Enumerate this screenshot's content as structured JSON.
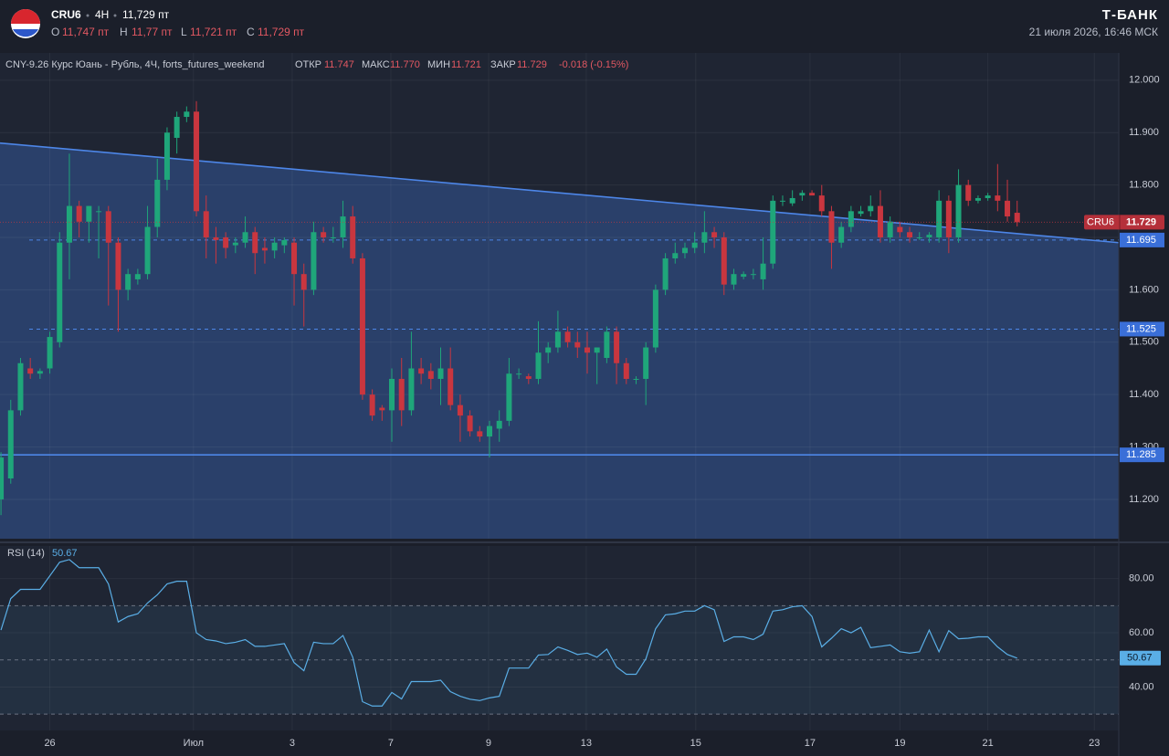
{
  "header": {
    "symbol": "CRU6",
    "interval": "4H",
    "last": "11,729 пт",
    "o_label": "O",
    "o_value": "11,747 пт",
    "h_label": "H",
    "h_value": "11,77 пт",
    "l_label": "L",
    "l_value": "11,721 пт",
    "c_label": "C",
    "c_value": "11,729 пт",
    "brand": "Т-БАНК",
    "datetime": "21 июля 2026, 16:46 МСК"
  },
  "chart_data": {
    "type": "candlestick",
    "legend_line": {
      "name": "CNY-9.26 Курс Юань - Рубль, 4Ч, forts_futures_weekend",
      "open_label": "ОТКР",
      "open": "11.747",
      "high_label": "МАКС",
      "high": "11.770",
      "low_label": "МИН",
      "low": "11.721",
      "close_label": "ЗАКР",
      "close": "11.729",
      "change": "-0.018 (-0.15%)"
    },
    "price_tag": "CRU6",
    "up_color": "#1fa67a",
    "down_color": "#c9363f",
    "candles": [
      [
        11.2,
        11.29,
        11.17,
        11.28
      ],
      [
        11.24,
        11.39,
        11.23,
        11.37
      ],
      [
        11.37,
        11.47,
        11.36,
        11.46
      ],
      [
        11.45,
        11.47,
        11.43,
        11.44
      ],
      [
        11.44,
        11.45,
        11.43,
        11.445
      ],
      [
        11.45,
        11.52,
        11.44,
        11.51
      ],
      [
        11.5,
        11.71,
        11.49,
        11.69
      ],
      [
        11.69,
        11.86,
        11.62,
        11.76
      ],
      [
        11.76,
        11.77,
        11.7,
        11.73
      ],
      [
        11.73,
        11.76,
        11.69,
        11.76
      ],
      [
        11.75,
        11.76,
        11.66,
        11.75
      ],
      [
        11.75,
        11.76,
        11.57,
        11.69
      ],
      [
        11.69,
        11.7,
        11.52,
        11.6
      ],
      [
        11.6,
        11.64,
        11.58,
        11.63
      ],
      [
        11.62,
        11.64,
        11.61,
        11.63
      ],
      [
        11.63,
        11.76,
        11.62,
        11.72
      ],
      [
        11.72,
        11.85,
        11.7,
        11.81
      ],
      [
        11.81,
        11.91,
        11.79,
        11.9
      ],
      [
        11.89,
        11.94,
        11.86,
        11.93
      ],
      [
        11.93,
        11.95,
        11.92,
        11.94
      ],
      [
        11.94,
        11.96,
        11.74,
        11.75
      ],
      [
        11.75,
        11.78,
        11.66,
        11.7
      ],
      [
        11.7,
        11.72,
        11.65,
        11.695
      ],
      [
        11.7,
        11.71,
        11.66,
        11.68
      ],
      [
        11.685,
        11.7,
        11.67,
        11.69
      ],
      [
        11.69,
        11.74,
        11.68,
        11.71
      ],
      [
        11.71,
        11.72,
        11.63,
        11.67
      ],
      [
        11.68,
        11.7,
        11.65,
        11.675
      ],
      [
        11.675,
        11.7,
        11.66,
        11.69
      ],
      [
        11.685,
        11.7,
        11.67,
        11.695
      ],
      [
        11.69,
        11.7,
        11.57,
        11.63
      ],
      [
        11.63,
        11.65,
        11.53,
        11.6
      ],
      [
        11.6,
        11.73,
        11.59,
        11.71
      ],
      [
        11.71,
        11.72,
        11.69,
        11.7
      ],
      [
        11.7,
        11.72,
        11.69,
        11.7
      ],
      [
        11.7,
        11.77,
        11.68,
        11.74
      ],
      [
        11.74,
        11.76,
        11.65,
        11.66
      ],
      [
        11.66,
        11.67,
        11.39,
        11.4
      ],
      [
        11.4,
        11.41,
        11.35,
        11.36
      ],
      [
        11.375,
        11.38,
        11.35,
        11.37
      ],
      [
        11.37,
        11.45,
        11.31,
        11.43
      ],
      [
        11.43,
        11.47,
        11.34,
        11.37
      ],
      [
        11.37,
        11.52,
        11.36,
        11.45
      ],
      [
        11.45,
        11.47,
        11.42,
        11.44
      ],
      [
        11.445,
        11.46,
        11.41,
        11.43
      ],
      [
        11.43,
        11.49,
        11.38,
        11.45
      ],
      [
        11.45,
        11.49,
        11.37,
        11.38
      ],
      [
        11.38,
        11.4,
        11.31,
        11.36
      ],
      [
        11.36,
        11.37,
        11.32,
        11.33
      ],
      [
        11.33,
        11.34,
        11.31,
        11.32
      ],
      [
        11.32,
        11.35,
        11.28,
        11.34
      ],
      [
        11.335,
        11.37,
        11.31,
        11.35
      ],
      [
        11.35,
        11.47,
        11.34,
        11.44
      ],
      [
        11.44,
        11.45,
        11.43,
        11.44
      ],
      [
        11.435,
        11.44,
        11.42,
        11.43
      ],
      [
        11.43,
        11.54,
        11.42,
        11.48
      ],
      [
        11.48,
        11.5,
        11.46,
        11.49
      ],
      [
        11.49,
        11.56,
        11.48,
        11.52
      ],
      [
        11.52,
        11.53,
        11.49,
        11.5
      ],
      [
        11.5,
        11.52,
        11.47,
        11.49
      ],
      [
        11.49,
        11.52,
        11.44,
        11.48
      ],
      [
        11.48,
        11.49,
        11.42,
        11.49
      ],
      [
        11.47,
        11.53,
        11.46,
        11.52
      ],
      [
        11.52,
        11.53,
        11.42,
        11.46
      ],
      [
        11.46,
        11.47,
        11.42,
        11.43
      ],
      [
        11.43,
        11.435,
        11.42,
        11.43
      ],
      [
        11.43,
        11.5,
        11.38,
        11.49
      ],
      [
        11.49,
        11.61,
        11.48,
        11.6
      ],
      [
        11.6,
        11.67,
        11.59,
        11.66
      ],
      [
        11.66,
        11.69,
        11.65,
        11.67
      ],
      [
        11.67,
        11.69,
        11.66,
        11.68
      ],
      [
        11.68,
        11.71,
        11.67,
        11.69
      ],
      [
        11.69,
        11.75,
        11.67,
        11.71
      ],
      [
        11.71,
        11.72,
        11.68,
        11.7
      ],
      [
        11.7,
        11.71,
        11.59,
        11.61
      ],
      [
        11.61,
        11.64,
        11.6,
        11.63
      ],
      [
        11.625,
        11.635,
        11.62,
        11.63
      ],
      [
        11.63,
        11.64,
        11.62,
        11.63
      ],
      [
        11.62,
        11.7,
        11.6,
        11.65
      ],
      [
        11.65,
        11.78,
        11.64,
        11.77
      ],
      [
        11.77,
        11.78,
        11.76,
        11.77
      ],
      [
        11.765,
        11.79,
        11.76,
        11.775
      ],
      [
        11.78,
        11.79,
        11.77,
        11.785
      ],
      [
        11.785,
        11.79,
        11.78,
        11.78
      ],
      [
        11.78,
        11.8,
        11.74,
        11.75
      ],
      [
        11.75,
        11.76,
        11.64,
        11.69
      ],
      [
        11.69,
        11.73,
        11.68,
        11.72
      ],
      [
        11.72,
        11.76,
        11.71,
        11.75
      ],
      [
        11.745,
        11.76,
        11.74,
        11.75
      ],
      [
        11.75,
        11.78,
        11.74,
        11.76
      ],
      [
        11.76,
        11.79,
        11.69,
        11.7
      ],
      [
        11.7,
        11.74,
        11.69,
        11.73
      ],
      [
        11.72,
        11.73,
        11.7,
        11.71
      ],
      [
        11.71,
        11.72,
        11.69,
        11.7
      ],
      [
        11.7,
        11.71,
        11.695,
        11.7
      ],
      [
        11.7,
        11.71,
        11.69,
        11.705
      ],
      [
        11.7,
        11.79,
        11.69,
        11.77
      ],
      [
        11.77,
        11.78,
        11.67,
        11.7
      ],
      [
        11.7,
        11.83,
        11.69,
        11.8
      ],
      [
        11.8,
        11.81,
        11.76,
        11.77
      ],
      [
        11.77,
        11.78,
        11.765,
        11.775
      ],
      [
        11.775,
        11.785,
        11.77,
        11.78
      ],
      [
        11.78,
        11.84,
        11.75,
        11.77
      ],
      [
        11.77,
        11.81,
        11.73,
        11.74
      ],
      [
        11.747,
        11.77,
        11.721,
        11.729
      ]
    ],
    "xlim": [
      -0.1,
      114.4
    ],
    "xticks": [
      {
        "value": 5,
        "label": "26"
      },
      {
        "value": 19.7,
        "label": "Июл"
      },
      {
        "value": 29.8,
        "label": "3"
      },
      {
        "value": 39.9,
        "label": "7"
      },
      {
        "value": 49.9,
        "label": "9"
      },
      {
        "value": 59.9,
        "label": "13"
      },
      {
        "value": 71.1,
        "label": "15"
      },
      {
        "value": 82.8,
        "label": "17"
      },
      {
        "value": 92,
        "label": "19"
      },
      {
        "value": 101,
        "label": "21"
      },
      {
        "value": 111.9,
        "label": "23"
      }
    ],
    "ylim": [
      11.125,
      12.052
    ],
    "yticks": [
      {
        "value": 12,
        "label": "12.000"
      },
      {
        "value": 11.9,
        "label": "11.900"
      },
      {
        "value": 11.8,
        "label": "11.800"
      },
      {
        "value": 11.7,
        "label": "11.700"
      },
      {
        "value": 11.6,
        "label": "11.600"
      },
      {
        "value": 11.5,
        "label": "11.500"
      },
      {
        "value": 11.4,
        "label": "11.400"
      },
      {
        "value": 11.3,
        "label": "11.300"
      },
      {
        "value": 11.2,
        "label": "11.200"
      }
    ],
    "grid": true,
    "trendline": {
      "values": [
        11.88,
        11.69
      ],
      "color": "#4d86e8"
    },
    "levels": [
      {
        "value": 11.695,
        "style": "dashed"
      },
      {
        "value": 11.525,
        "style": "dashed"
      },
      {
        "value": 11.285,
        "style": "solid"
      }
    ],
    "rsi": {
      "name": "RSI (14)",
      "color": "#5aaee6",
      "values": [
        61,
        72.6,
        76,
        76,
        76,
        81,
        86,
        87,
        84,
        84,
        84,
        78,
        64,
        66,
        67,
        71,
        74,
        78,
        79,
        79,
        60,
        57.5,
        57,
        56,
        56.5,
        57.5,
        55,
        55,
        55.5,
        56,
        49,
        46,
        56.5,
        56,
        56,
        59,
        51,
        34.6,
        33,
        33,
        38,
        35.6,
        42,
        42,
        42,
        42.5,
        38.3,
        36.6,
        35.5,
        35,
        36,
        36.6,
        47,
        47,
        47,
        51.8,
        52,
        54.8,
        53.5,
        52,
        52.5,
        51,
        54,
        47.4,
        44.7,
        44.7,
        50.4,
        61.5,
        66.6,
        67,
        68,
        68,
        70,
        68.5,
        56.8,
        58.5,
        58.5,
        57.5,
        59.5,
        68,
        68.5,
        69.6,
        70,
        66,
        54.8,
        58,
        61.5,
        60,
        62,
        54.5,
        55,
        55.5,
        53,
        52.5,
        53,
        61,
        53,
        60.8,
        57.8,
        58,
        58.5,
        58.5,
        54.8,
        52,
        50.67
      ],
      "ylim": [
        24,
        92
      ],
      "yticks": [
        {
          "value": 80,
          "label": "80.00"
        },
        {
          "value": 60,
          "label": "60.00"
        },
        {
          "value": 40,
          "label": "40.00"
        }
      ],
      "bands": [
        70,
        50,
        30
      ]
    }
  }
}
